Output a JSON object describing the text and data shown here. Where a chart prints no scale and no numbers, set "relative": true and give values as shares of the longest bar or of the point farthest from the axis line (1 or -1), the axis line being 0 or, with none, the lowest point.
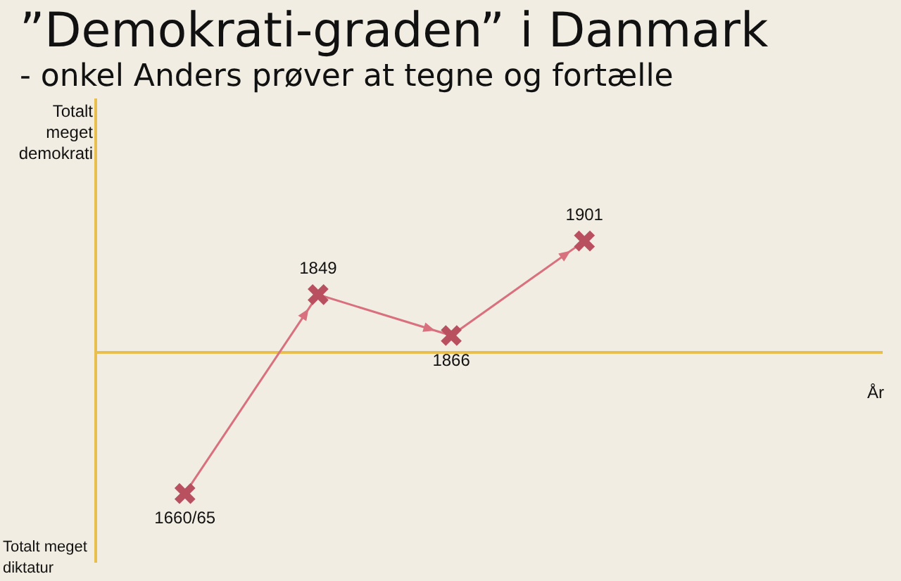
{
  "chart_data": {
    "type": "line",
    "title": "”Demokrati-graden” i Danmark",
    "subtitle": "- onkel Anders prøver at tegne og fortælle",
    "relative": true,
    "legend": false,
    "marker": "cross",
    "line_style": "solid",
    "categories": [
      "1660/65",
      "1849",
      "1866",
      "1901"
    ],
    "series": [
      {
        "color": "#d9707e",
        "values": [
          -1,
          0.41,
          0.12,
          0.79
        ]
      }
    ],
    "ref_lines": [
      {
        "axis": "y",
        "value": 0,
        "color": "#e8bf4f"
      }
    ],
    "annotations": [
      "Totalt meget demokrati",
      "Totalt meget diktatur",
      "År"
    ]
  }
}
